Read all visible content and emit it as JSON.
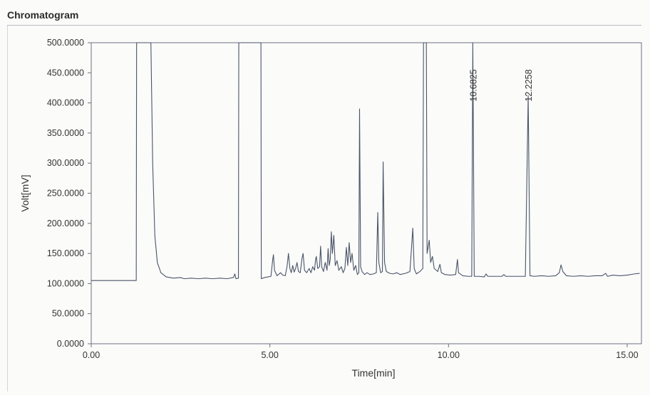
{
  "window": {
    "title": "Chromatogram"
  },
  "chart_data": {
    "type": "line",
    "title": "Chromatogram",
    "xlabel": "Time[min]",
    "ylabel": "Volt[mV]",
    "xlim": [
      0,
      15.4
    ],
    "ylim": [
      0,
      500
    ],
    "xticks": [
      0,
      5,
      10,
      15
    ],
    "xtick_labels": [
      "0.00",
      "5.00",
      "10.00",
      "15.00"
    ],
    "yticks": [
      0,
      50,
      100,
      150,
      200,
      250,
      300,
      350,
      400,
      450,
      500
    ],
    "ytick_labels": [
      "0.0000",
      "50.0000",
      "100.0000",
      "150.0000",
      "200.0000",
      "250.0000",
      "300.0000",
      "350.0000",
      "400.0000",
      "450.0000",
      "500.0000"
    ],
    "grid": false,
    "line_color": "#4a5568",
    "axis_color": "#6b7280",
    "series": [
      {
        "points": [
          [
            0.0,
            105
          ],
          [
            1.26,
            105
          ],
          [
            1.27,
            500
          ],
          [
            1.67,
            500
          ],
          [
            1.68,
            460
          ],
          [
            1.72,
            300
          ],
          [
            1.78,
            180
          ],
          [
            1.85,
            135
          ],
          [
            1.95,
            118
          ],
          [
            2.1,
            111
          ],
          [
            2.3,
            109
          ],
          [
            2.5,
            110
          ],
          [
            2.6,
            108
          ],
          [
            2.8,
            109
          ],
          [
            3.0,
            108
          ],
          [
            3.2,
            109
          ],
          [
            3.4,
            108
          ],
          [
            3.6,
            109
          ],
          [
            3.8,
            108
          ],
          [
            3.98,
            110
          ],
          [
            4.02,
            116
          ],
          [
            4.05,
            108
          ],
          [
            4.12,
            109
          ],
          [
            4.13,
            500
          ],
          [
            4.75,
            500
          ],
          [
            4.76,
            108
          ],
          [
            4.85,
            110
          ],
          [
            4.95,
            111
          ],
          [
            5.03,
            112
          ],
          [
            5.08,
            140
          ],
          [
            5.1,
            148
          ],
          [
            5.13,
            122
          ],
          [
            5.2,
            113
          ],
          [
            5.3,
            118
          ],
          [
            5.36,
            114
          ],
          [
            5.43,
            113
          ],
          [
            5.48,
            128
          ],
          [
            5.52,
            150
          ],
          [
            5.56,
            125
          ],
          [
            5.6,
            118
          ],
          [
            5.64,
            130
          ],
          [
            5.68,
            119
          ],
          [
            5.72,
            125
          ],
          [
            5.76,
            135
          ],
          [
            5.8,
            120
          ],
          [
            5.85,
            118
          ],
          [
            5.9,
            142
          ],
          [
            5.93,
            150
          ],
          [
            5.97,
            122
          ],
          [
            6.03,
            118
          ],
          [
            6.1,
            125
          ],
          [
            6.15,
            118
          ],
          [
            6.2,
            128
          ],
          [
            6.25,
            122
          ],
          [
            6.28,
            140
          ],
          [
            6.3,
            145
          ],
          [
            6.34,
            125
          ],
          [
            6.39,
            128
          ],
          [
            6.42,
            162
          ],
          [
            6.45,
            128
          ],
          [
            6.5,
            120
          ],
          [
            6.55,
            135
          ],
          [
            6.6,
            122
          ],
          [
            6.63,
            158
          ],
          [
            6.66,
            130
          ],
          [
            6.69,
            140
          ],
          [
            6.72,
            186
          ],
          [
            6.75,
            150
          ],
          [
            6.79,
            180
          ],
          [
            6.83,
            130
          ],
          [
            6.88,
            138
          ],
          [
            6.93,
            122
          ],
          [
            7.0,
            128
          ],
          [
            7.05,
            118
          ],
          [
            7.1,
            125
          ],
          [
            7.14,
            160
          ],
          [
            7.18,
            130
          ],
          [
            7.22,
            168
          ],
          [
            7.26,
            135
          ],
          [
            7.3,
            150
          ],
          [
            7.35,
            122
          ],
          [
            7.4,
            130
          ],
          [
            7.45,
            115
          ],
          [
            7.49,
            118
          ],
          [
            7.51,
            390
          ],
          [
            7.54,
            128
          ],
          [
            7.58,
            120
          ],
          [
            7.65,
            115
          ],
          [
            7.72,
            118
          ],
          [
            7.8,
            115
          ],
          [
            7.9,
            116
          ],
          [
            7.98,
            118
          ],
          [
            8.02,
            218
          ],
          [
            8.05,
            135
          ],
          [
            8.1,
            118
          ],
          [
            8.15,
            120
          ],
          [
            8.17,
            302
          ],
          [
            8.21,
            135
          ],
          [
            8.26,
            120
          ],
          [
            8.35,
            117
          ],
          [
            8.45,
            116
          ],
          [
            8.55,
            118
          ],
          [
            8.65,
            115
          ],
          [
            8.8,
            117
          ],
          [
            8.92,
            120
          ],
          [
            9.0,
            192
          ],
          [
            9.04,
            125
          ],
          [
            9.1,
            116
          ],
          [
            9.2,
            120
          ],
          [
            9.28,
            125
          ],
          [
            9.3,
            500
          ],
          [
            9.38,
            500
          ],
          [
            9.4,
            150
          ],
          [
            9.46,
            172
          ],
          [
            9.5,
            135
          ],
          [
            9.55,
            145
          ],
          [
            9.6,
            125
          ],
          [
            9.7,
            120
          ],
          [
            9.76,
            132
          ],
          [
            9.8,
            118
          ],
          [
            9.9,
            115
          ],
          [
            10.05,
            114
          ],
          [
            10.2,
            115
          ],
          [
            10.25,
            140
          ],
          [
            10.28,
            118
          ],
          [
            10.4,
            113
          ],
          [
            10.55,
            112
          ],
          [
            10.65,
            112
          ],
          [
            10.68,
            500
          ],
          [
            10.72,
            112
          ],
          [
            10.85,
            112
          ],
          [
            11.0,
            111
          ],
          [
            11.05,
            116
          ],
          [
            11.1,
            112
          ],
          [
            11.3,
            112
          ],
          [
            11.5,
            112
          ],
          [
            11.55,
            115
          ],
          [
            11.6,
            112
          ],
          [
            11.8,
            112
          ],
          [
            12.0,
            112
          ],
          [
            12.15,
            112
          ],
          [
            12.23,
            412
          ],
          [
            12.28,
            113
          ],
          [
            12.4,
            112
          ],
          [
            12.6,
            113
          ],
          [
            12.8,
            112
          ],
          [
            13.0,
            113
          ],
          [
            13.1,
            118
          ],
          [
            13.15,
            131
          ],
          [
            13.2,
            120
          ],
          [
            13.3,
            113
          ],
          [
            13.5,
            112
          ],
          [
            13.7,
            113
          ],
          [
            13.9,
            112
          ],
          [
            14.1,
            113
          ],
          [
            14.3,
            113
          ],
          [
            14.4,
            117
          ],
          [
            14.45,
            112
          ],
          [
            14.6,
            114
          ],
          [
            14.8,
            113
          ],
          [
            15.0,
            114
          ],
          [
            15.2,
            116
          ],
          [
            15.35,
            117
          ]
        ]
      }
    ],
    "annotations": [
      {
        "x": 10.6825,
        "text": "10.6825"
      },
      {
        "x": 12.2258,
        "text": "12.2258"
      }
    ]
  }
}
